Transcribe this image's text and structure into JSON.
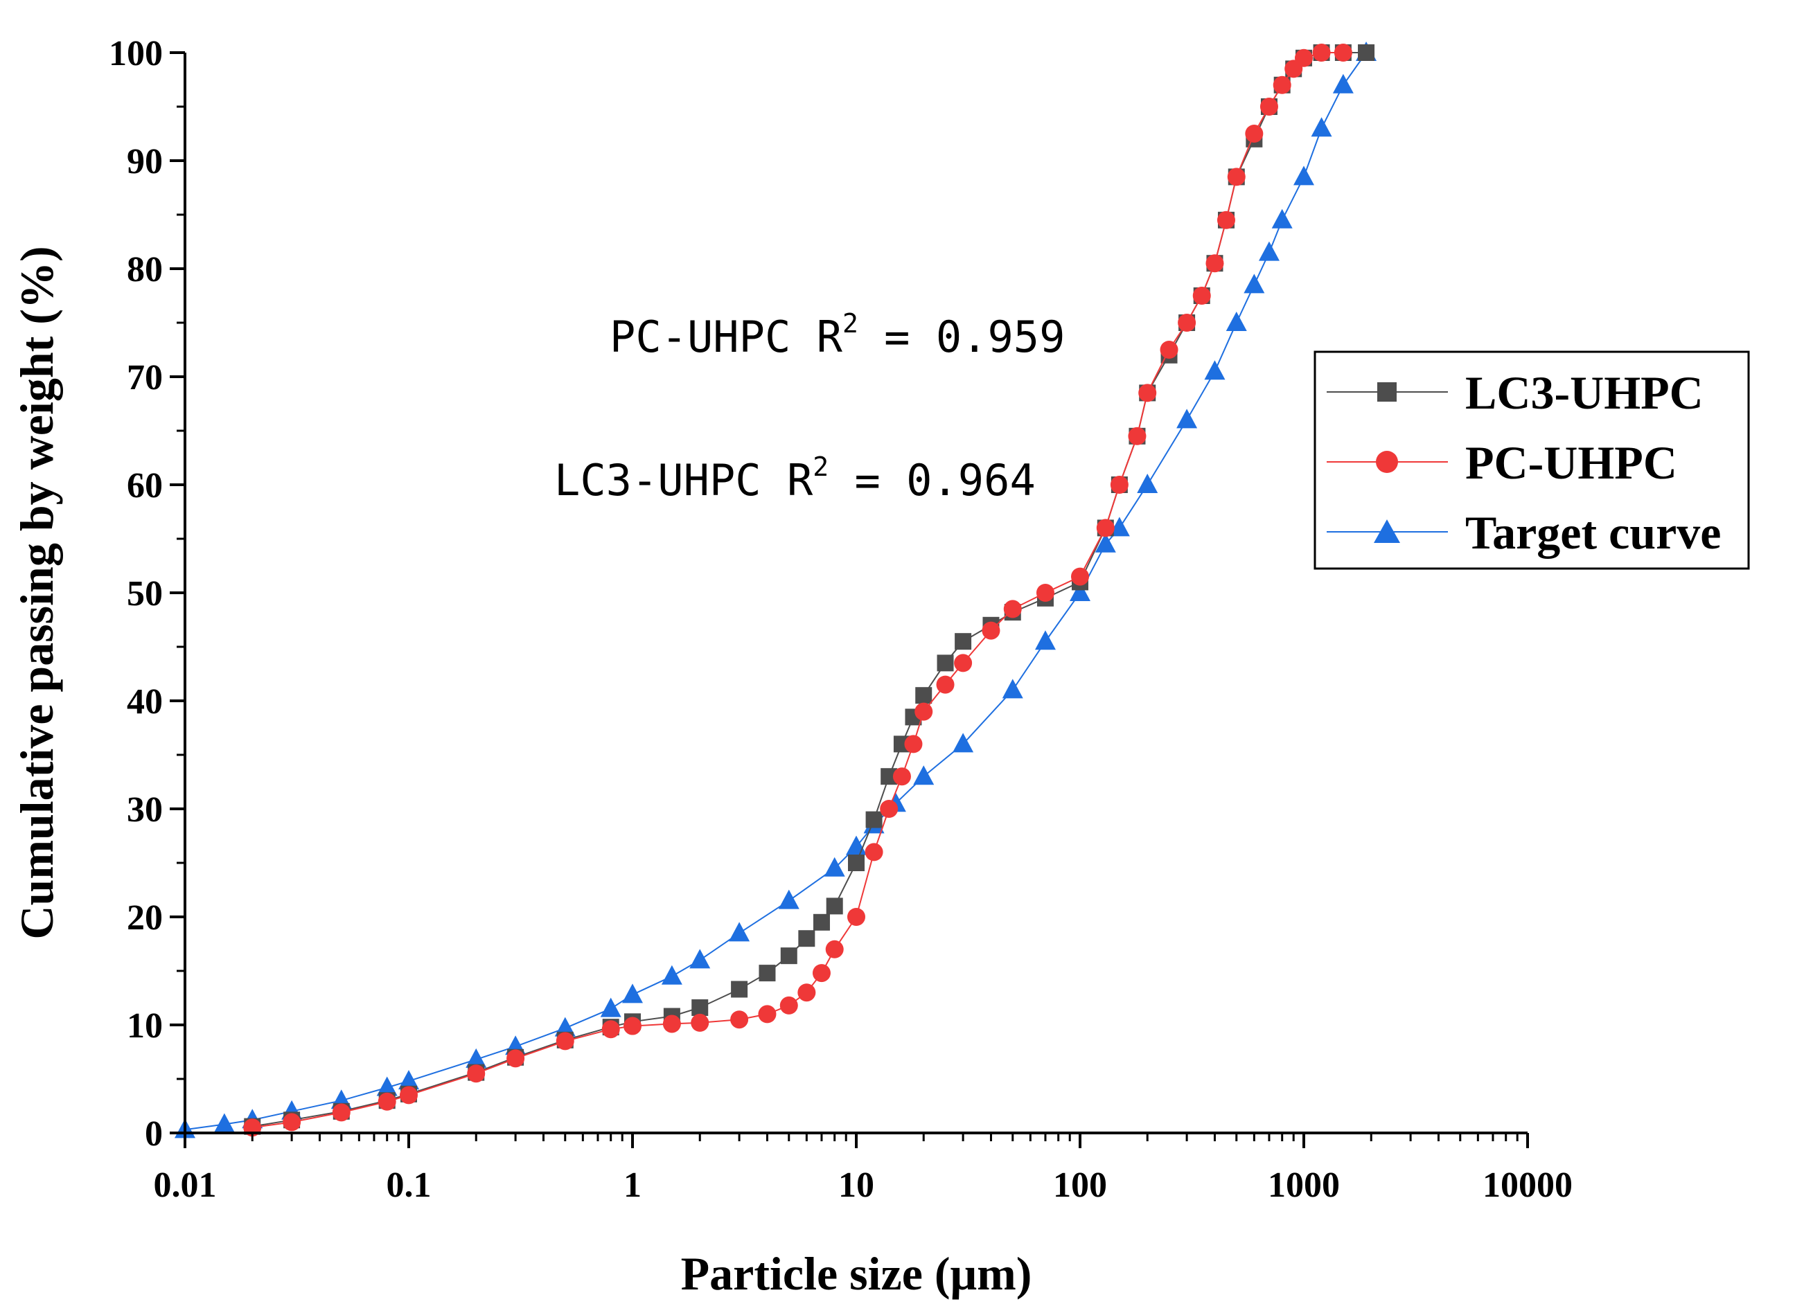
{
  "chart_data": {
    "type": "scatter",
    "xlabel": "Particle size (μm)",
    "ylabel": "Cumulative passing by weight (%)",
    "xscale": "log",
    "xlim": [
      0.01,
      10000
    ],
    "ylim": [
      0,
      100
    ],
    "xticks": [
      "0.01",
      "0.1",
      "1",
      "10",
      "100",
      "1000",
      "10000"
    ],
    "yticks": [
      "0",
      "10",
      "20",
      "30",
      "40",
      "50",
      "60",
      "70",
      "80",
      "90",
      "100"
    ],
    "legend": {
      "placement": "right"
    },
    "annotations": [
      {
        "prefix": "PC-UHPC R",
        "sup": "2",
        "suffix": " = 0.959"
      },
      {
        "prefix": "LC3-UHPC R",
        "sup": "2",
        "suffix": " = 0.964"
      }
    ],
    "series": [
      {
        "name": "LC3-UHPC",
        "marker": "square",
        "color": "#4d4d4d",
        "points": [
          [
            0.02,
            0.6
          ],
          [
            0.03,
            1.2
          ],
          [
            0.05,
            2.0
          ],
          [
            0.08,
            3.0
          ],
          [
            0.1,
            3.6
          ],
          [
            0.2,
            5.6
          ],
          [
            0.3,
            7.0
          ],
          [
            0.5,
            8.6
          ],
          [
            0.8,
            9.8
          ],
          [
            1.0,
            10.3
          ],
          [
            1.5,
            10.8
          ],
          [
            2.0,
            11.6
          ],
          [
            3.0,
            13.3
          ],
          [
            4.0,
            14.8
          ],
          [
            5.0,
            16.4
          ],
          [
            6.0,
            18.0
          ],
          [
            7.0,
            19.5
          ],
          [
            8.0,
            21.0
          ],
          [
            10.0,
            25.0
          ],
          [
            12.0,
            29.0
          ],
          [
            14.0,
            33.0
          ],
          [
            16.0,
            36.0
          ],
          [
            18.0,
            38.5
          ],
          [
            20.0,
            40.5
          ],
          [
            25.0,
            43.5
          ],
          [
            30.0,
            45.5
          ],
          [
            40.0,
            47.0
          ],
          [
            50.0,
            48.2
          ],
          [
            70.0,
            49.5
          ],
          [
            100.0,
            51.0
          ],
          [
            130.0,
            56.0
          ],
          [
            150.0,
            60.0
          ],
          [
            180.0,
            64.5
          ],
          [
            200.0,
            68.5
          ],
          [
            250.0,
            72.0
          ],
          [
            300.0,
            75.0
          ],
          [
            350.0,
            77.5
          ],
          [
            400.0,
            80.5
          ],
          [
            450.0,
            84.5
          ],
          [
            500.0,
            88.5
          ],
          [
            600.0,
            92.0
          ],
          [
            700.0,
            95.0
          ],
          [
            800.0,
            97.0
          ],
          [
            900.0,
            98.5
          ],
          [
            1000.0,
            99.5
          ],
          [
            1200.0,
            100.0
          ],
          [
            1500.0,
            100.0
          ],
          [
            1900.0,
            100.0
          ]
        ]
      },
      {
        "name": "PC-UHPC",
        "marker": "circle",
        "color": "#ef3838",
        "points": [
          [
            0.02,
            0.5
          ],
          [
            0.03,
            1.0
          ],
          [
            0.05,
            1.9
          ],
          [
            0.08,
            2.9
          ],
          [
            0.1,
            3.5
          ],
          [
            0.2,
            5.5
          ],
          [
            0.3,
            6.9
          ],
          [
            0.5,
            8.5
          ],
          [
            0.8,
            9.6
          ],
          [
            1.0,
            9.9
          ],
          [
            1.5,
            10.1
          ],
          [
            2.0,
            10.2
          ],
          [
            3.0,
            10.5
          ],
          [
            4.0,
            11.0
          ],
          [
            5.0,
            11.8
          ],
          [
            6.0,
            13.0
          ],
          [
            7.0,
            14.8
          ],
          [
            8.0,
            17.0
          ],
          [
            10.0,
            20.0
          ],
          [
            12.0,
            26.0
          ],
          [
            14.0,
            30.0
          ],
          [
            16.0,
            33.0
          ],
          [
            18.0,
            36.0
          ],
          [
            20.0,
            39.0
          ],
          [
            25.0,
            41.5
          ],
          [
            30.0,
            43.5
          ],
          [
            40.0,
            46.5
          ],
          [
            50.0,
            48.5
          ],
          [
            70.0,
            50.0
          ],
          [
            100.0,
            51.5
          ],
          [
            130.0,
            56.0
          ],
          [
            150.0,
            60.0
          ],
          [
            180.0,
            64.5
          ],
          [
            200.0,
            68.5
          ],
          [
            250.0,
            72.5
          ],
          [
            300.0,
            75.0
          ],
          [
            350.0,
            77.5
          ],
          [
            400.0,
            80.5
          ],
          [
            450.0,
            84.5
          ],
          [
            500.0,
            88.5
          ],
          [
            600.0,
            92.5
          ],
          [
            700.0,
            95.0
          ],
          [
            800.0,
            97.0
          ],
          [
            900.0,
            98.5
          ],
          [
            1000.0,
            99.5
          ],
          [
            1200.0,
            100.0
          ],
          [
            1500.0,
            100.0
          ]
        ]
      },
      {
        "name": "Target curve",
        "marker": "triangle",
        "color": "#1e6fe0",
        "points": [
          [
            0.01,
            0.3
          ],
          [
            0.015,
            0.8
          ],
          [
            0.02,
            1.2
          ],
          [
            0.03,
            2.0
          ],
          [
            0.05,
            3.0
          ],
          [
            0.08,
            4.2
          ],
          [
            0.1,
            4.8
          ],
          [
            0.2,
            6.8
          ],
          [
            0.3,
            8.0
          ],
          [
            0.5,
            9.7
          ],
          [
            0.8,
            11.5
          ],
          [
            1.0,
            12.8
          ],
          [
            1.5,
            14.5
          ],
          [
            2.0,
            16.0
          ],
          [
            3.0,
            18.5
          ],
          [
            5.0,
            21.5
          ],
          [
            8.0,
            24.5
          ],
          [
            10.0,
            26.5
          ],
          [
            12.0,
            28.5
          ],
          [
            15.0,
            30.5
          ],
          [
            20.0,
            33.0
          ],
          [
            30.0,
            36.0
          ],
          [
            50.0,
            41.0
          ],
          [
            70.0,
            45.5
          ],
          [
            100.0,
            50.0
          ],
          [
            130.0,
            54.5
          ],
          [
            150.0,
            56.0
          ],
          [
            200.0,
            60.0
          ],
          [
            300.0,
            66.0
          ],
          [
            400.0,
            70.5
          ],
          [
            500.0,
            75.0
          ],
          [
            600.0,
            78.5
          ],
          [
            700.0,
            81.5
          ],
          [
            800.0,
            84.5
          ],
          [
            1000.0,
            88.5
          ],
          [
            1200.0,
            93.0
          ],
          [
            1500.0,
            97.0
          ],
          [
            1900.0,
            100.0
          ]
        ]
      }
    ]
  }
}
